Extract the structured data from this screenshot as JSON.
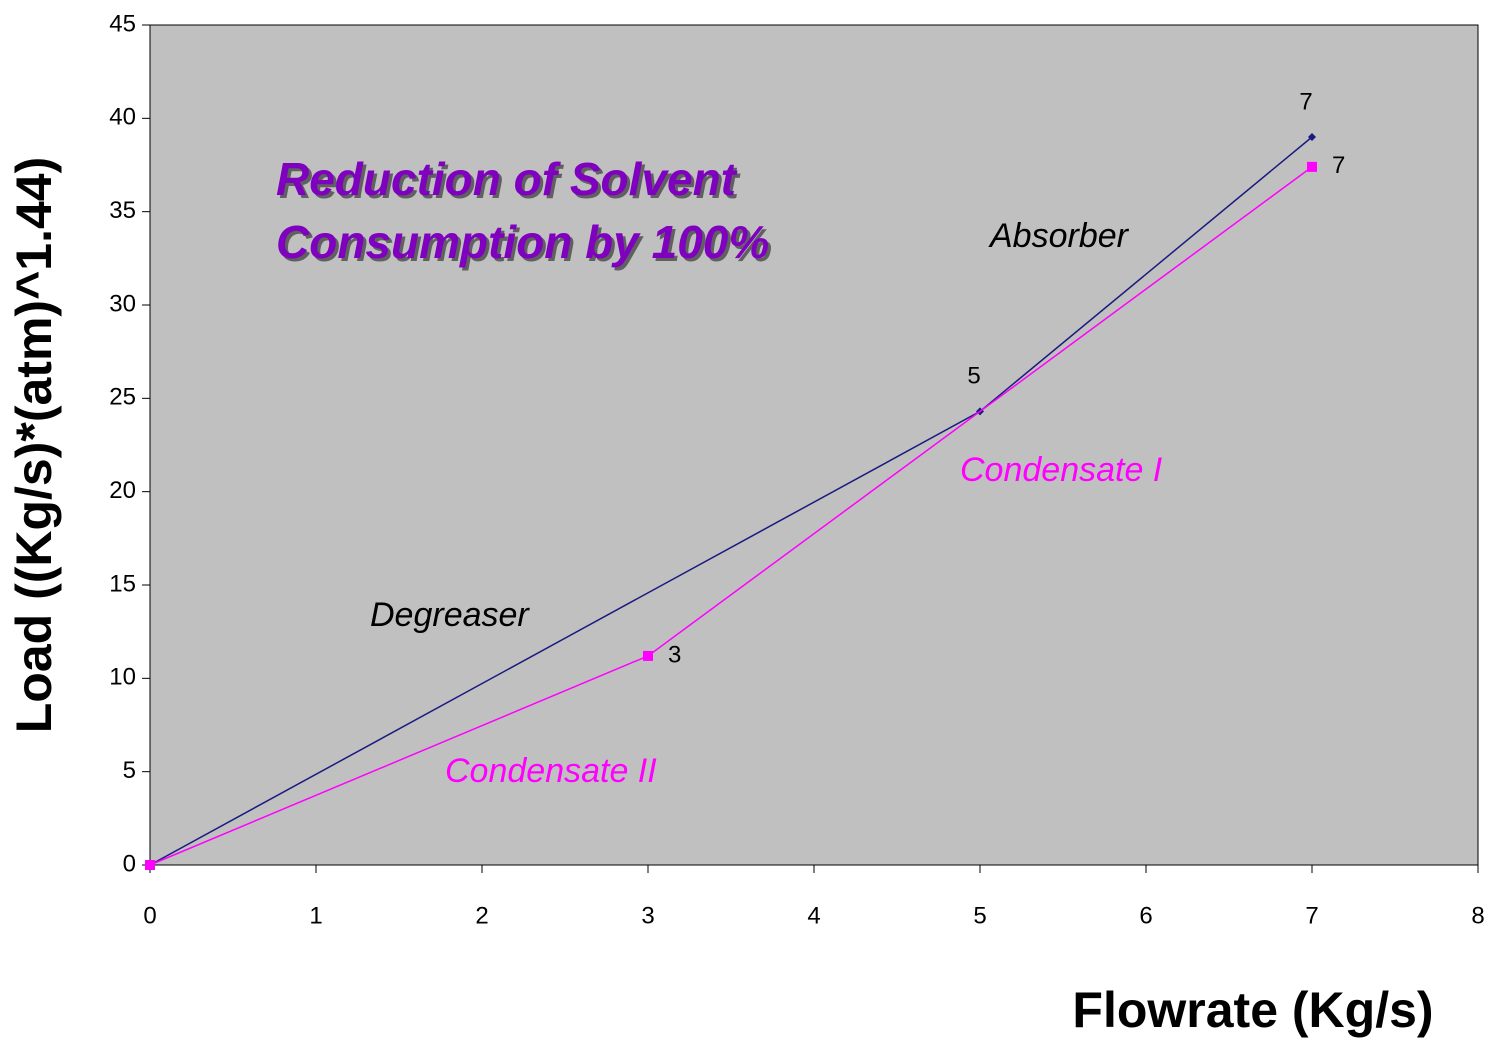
{
  "chart_data": {
    "type": "line",
    "title": [
      "Reduction of Solvent",
      "Consumption by 100%"
    ],
    "title_color": "#8000c0",
    "xlabel": "Flowrate (Kg/s)",
    "ylabel": "Load  ((Kg/s)*(atm)^1.44)",
    "xlim": [
      0,
      8
    ],
    "xticks": [
      0,
      1,
      2,
      3,
      4,
      5,
      6,
      7,
      8
    ],
    "ylim": [
      0,
      45
    ],
    "yticks": [
      0,
      5,
      10,
      15,
      20,
      25,
      30,
      35,
      40,
      45
    ],
    "background": "#c0c0c0",
    "series": [
      {
        "color": "#1a1a80",
        "marker": "diamond",
        "x": [
          0,
          5,
          7
        ],
        "values": [
          0,
          24.3,
          39.0
        ]
      },
      {
        "color": "#ff00ff",
        "marker": "square",
        "x": [
          0,
          3,
          7
        ],
        "values": [
          0,
          11.2,
          37.4
        ]
      }
    ],
    "annotations": [
      {
        "text": "Absorber",
        "color": "#000000"
      },
      {
        "text": "Degreaser",
        "color": "#000000"
      },
      {
        "text": "Condensate I",
        "color": "#ff00ff"
      },
      {
        "text": "Condensate II",
        "color": "#ff00ff"
      }
    ]
  }
}
